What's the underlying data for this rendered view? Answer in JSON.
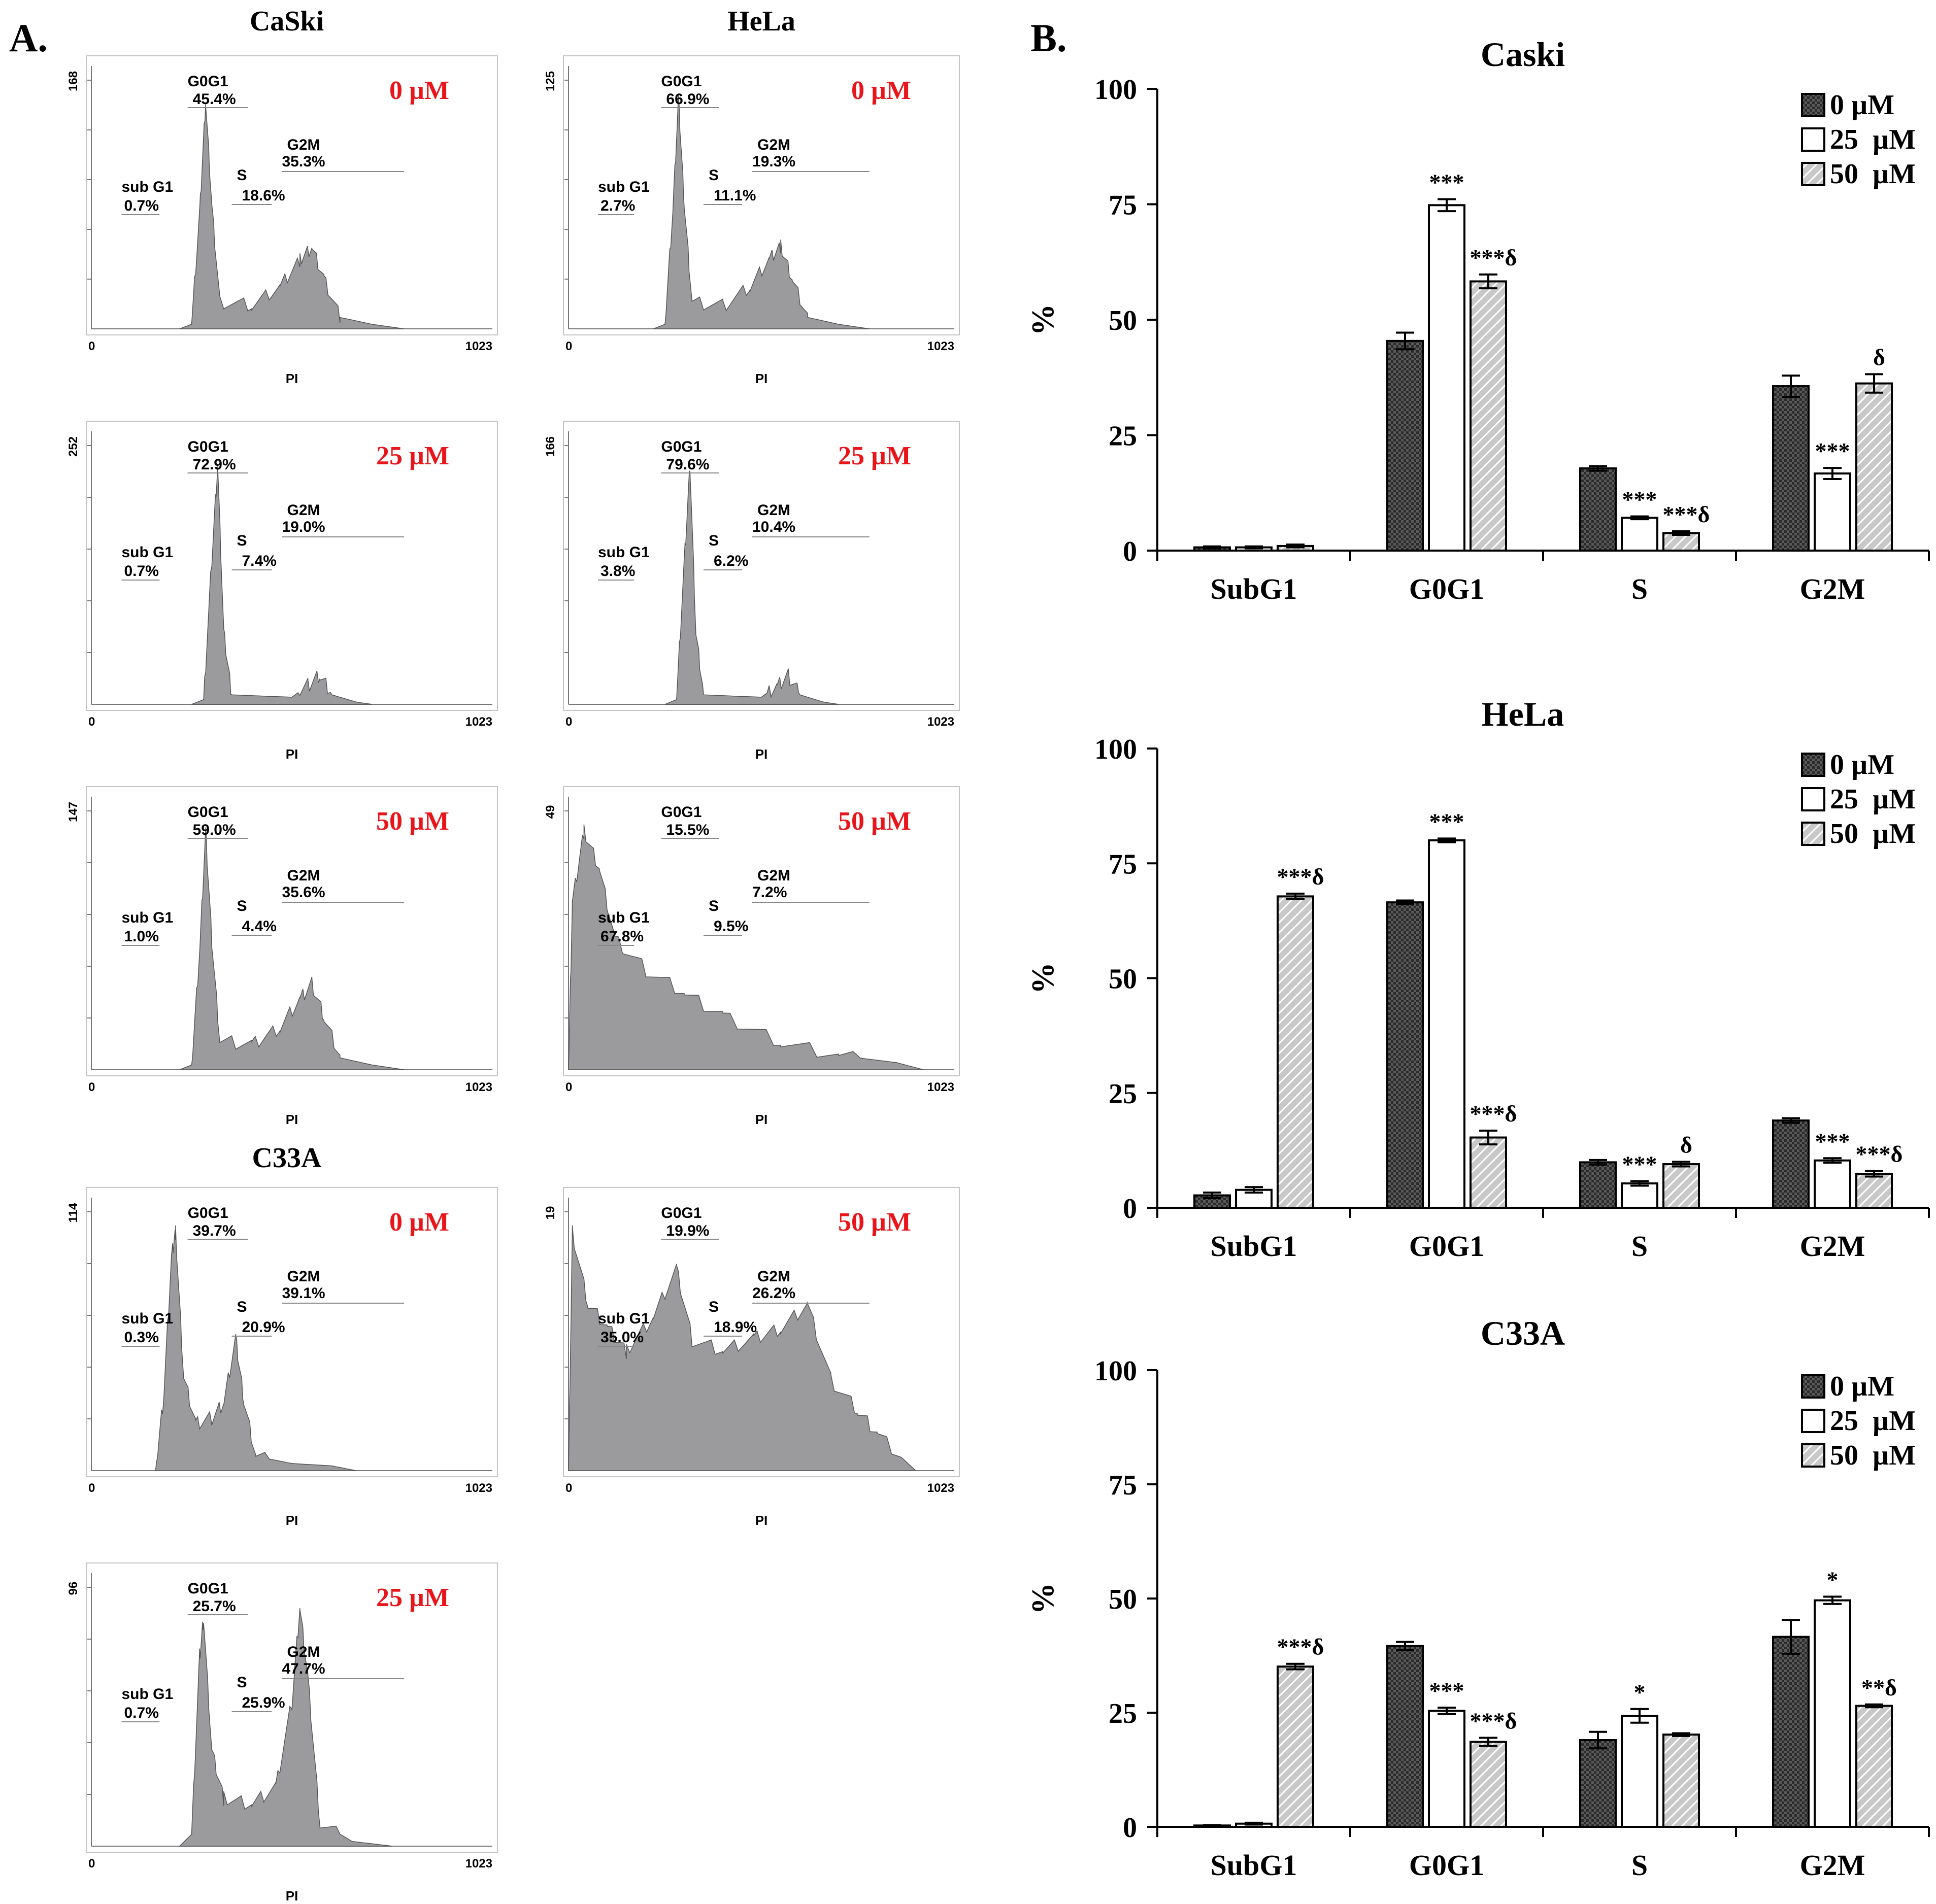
{
  "panel_a": {
    "label": "A.",
    "cell_titles": [
      "CaSki",
      "HeLa",
      "C33A"
    ],
    "axis_end": "1023",
    "axis_start": "0",
    "axis_label": "PI",
    "histograms": [
      {
        "id": "caski-0",
        "dose": "0 µM",
        "ymax": "168",
        "g0g1": "45.4%",
        "s": "18.6%",
        "g2m": "35.3%",
        "subg1": "0.7%",
        "g0g1_label": "G0G1",
        "s_label": "S",
        "g2m_label": "G2M",
        "subg1_label": "sub G1"
      },
      {
        "id": "hela-0",
        "dose": "0 µM",
        "ymax": "125",
        "g0g1": "66.9%",
        "s": "11.1%",
        "g2m": "19.3%",
        "subg1": "2.7%",
        "g0g1_label": "G0G1",
        "s_label": "S",
        "g2m_label": "G2M",
        "subg1_label": "sub G1"
      },
      {
        "id": "caski-25",
        "dose": "25 µM",
        "ymax": "252",
        "g0g1": "72.9%",
        "s": "7.4%",
        "g2m": "19.0%",
        "subg1": "0.7%",
        "g0g1_label": "G0G1",
        "s_label": "S",
        "g2m_label": "G2M",
        "subg1_label": "sub G1"
      },
      {
        "id": "hela-25",
        "dose": "25 µM",
        "ymax": "166",
        "g0g1": "79.6%",
        "s": "6.2%",
        "g2m": "10.4%",
        "subg1": "3.8%",
        "g0g1_label": "G0G1",
        "s_label": "S",
        "g2m_label": "G2M",
        "subg1_label": "sub G1"
      },
      {
        "id": "caski-50",
        "dose": "50 µM",
        "ymax": "147",
        "g0g1": "59.0%",
        "s": "4.4%",
        "g2m": "35.6%",
        "subg1": "1.0%",
        "g0g1_label": "G0G1",
        "s_label": "S",
        "g2m_label": "G2M",
        "subg1_label": "sub G1"
      },
      {
        "id": "hela-50",
        "dose": "50 µM",
        "ymax": "49",
        "g0g1": "15.5%",
        "s": "9.5%",
        "g2m": "7.2%",
        "subg1": "67.8%",
        "g0g1_label": "G0G1",
        "s_label": "S",
        "g2m_label": "G2M",
        "subg1_label": "sub G1"
      },
      {
        "id": "c33a-0",
        "dose": "0 µM",
        "ymax": "114",
        "g0g1": "39.7%",
        "s": "20.9%",
        "g2m": "39.1%",
        "subg1": "0.3%",
        "g0g1_label": "G0G1",
        "s_label": "S",
        "g2m_label": "G2M",
        "subg1_label": "sub G1"
      },
      {
        "id": "c33a-50",
        "dose": "50 µM",
        "ymax": "19",
        "g0g1": "19.9%",
        "s": "18.9%",
        "g2m": "26.2%",
        "subg1": "35.0%",
        "g0g1_label": "G0G1",
        "s_label": "S",
        "g2m_label": "G2M",
        "subg1_label": "sub G1"
      },
      {
        "id": "c33a-25",
        "dose": "25 µM",
        "ymax": "96",
        "g0g1": "25.7%",
        "s": "25.9%",
        "g2m": "47.7%",
        "subg1": "0.7%",
        "g0g1_label": "G0G1",
        "s_label": "S",
        "g2m_label": "G2M",
        "subg1_label": "sub G1"
      }
    ]
  },
  "panel_b": {
    "label": "B."
  },
  "colors": {
    "dose_text": "#e8161b",
    "hist_fill": "#9b9b9e",
    "bar_0": "#5a5a5a",
    "bar_25": "#ffffff",
    "bar_50": "#c8c8c8"
  },
  "chart_data": [
    {
      "type": "bar",
      "title": "Caski",
      "ylabel": "%",
      "ylim": [
        0,
        100
      ],
      "yticks": [
        "0",
        "25",
        "50",
        "75",
        "100"
      ],
      "categories": [
        "SubG1",
        "G0G1",
        "S",
        "G2M"
      ],
      "legend": [
        "0 µM",
        "25  µM",
        "50  µM"
      ],
      "legend_position": "top-right",
      "series": [
        {
          "name": "0 µM",
          "values": [
            0.7,
            45.4,
            17.8,
            35.6
          ],
          "errors": [
            0.2,
            1.8,
            0.5,
            2.3
          ],
          "annotations": [
            "",
            "",
            "",
            ""
          ]
        },
        {
          "name": "25 µM",
          "values": [
            0.7,
            74.8,
            7.1,
            16.7
          ],
          "errors": [
            0.2,
            1.3,
            0.3,
            1.2
          ],
          "annotations": [
            "",
            "***",
            "***",
            "***"
          ]
        },
        {
          "name": "50 µM",
          "values": [
            1.0,
            58.3,
            3.8,
            36.2
          ],
          "errors": [
            0.3,
            1.5,
            0.4,
            2.0
          ],
          "annotations": [
            "",
            "***δ",
            "***δ",
            "δ"
          ]
        }
      ]
    },
    {
      "type": "bar",
      "title": "HeLa",
      "ylabel": "%",
      "ylim": [
        0,
        100
      ],
      "yticks": [
        "0",
        "25",
        "50",
        "75",
        "100"
      ],
      "categories": [
        "SubG1",
        "G0G1",
        "S",
        "G2M"
      ],
      "legend": [
        "0 µM",
        "25  µM",
        "50  µM"
      ],
      "legend_position": "top-right",
      "series": [
        {
          "name": "0 µM",
          "values": [
            2.7,
            66.5,
            9.9,
            19.0
          ],
          "errors": [
            0.6,
            0.4,
            0.5,
            0.5
          ],
          "annotations": [
            "",
            "",
            "",
            ""
          ]
        },
        {
          "name": "25 µM",
          "values": [
            3.9,
            80.0,
            5.3,
            10.3
          ],
          "errors": [
            0.6,
            0.4,
            0.5,
            0.5
          ],
          "annotations": [
            "",
            "***",
            "***",
            "***"
          ]
        },
        {
          "name": "50 µM",
          "values": [
            67.8,
            15.3,
            9.5,
            7.4
          ],
          "errors": [
            0.6,
            1.5,
            0.5,
            0.6
          ],
          "annotations": [
            "***δ",
            "***δ",
            "δ",
            "***δ"
          ]
        }
      ]
    },
    {
      "type": "bar",
      "title": "C33A",
      "ylabel": "%",
      "ylim": [
        0,
        100
      ],
      "yticks": [
        "0",
        "25",
        "50",
        "75",
        "100"
      ],
      "categories": [
        "SubG1",
        "G0G1",
        "S",
        "G2M"
      ],
      "legend": [
        "0 µM",
        "25  µM",
        "50  µM"
      ],
      "legend_position": "top-right",
      "series": [
        {
          "name": "0 µM",
          "values": [
            0.3,
            39.6,
            19.0,
            41.6
          ],
          "errors": [
            0.1,
            0.9,
            1.8,
            3.7
          ],
          "annotations": [
            "",
            "",
            "",
            ""
          ]
        },
        {
          "name": "25 µM",
          "values": [
            0.7,
            25.4,
            24.3,
            49.6
          ],
          "errors": [
            0.2,
            0.7,
            1.5,
            0.8
          ],
          "annotations": [
            "",
            "***",
            "*",
            "*"
          ]
        },
        {
          "name": "50 µM",
          "values": [
            35.1,
            18.6,
            20.2,
            26.5
          ],
          "errors": [
            0.6,
            0.9,
            0.3,
            0.3
          ],
          "annotations": [
            "***δ",
            "***δ",
            "",
            "**δ"
          ]
        }
      ]
    }
  ]
}
